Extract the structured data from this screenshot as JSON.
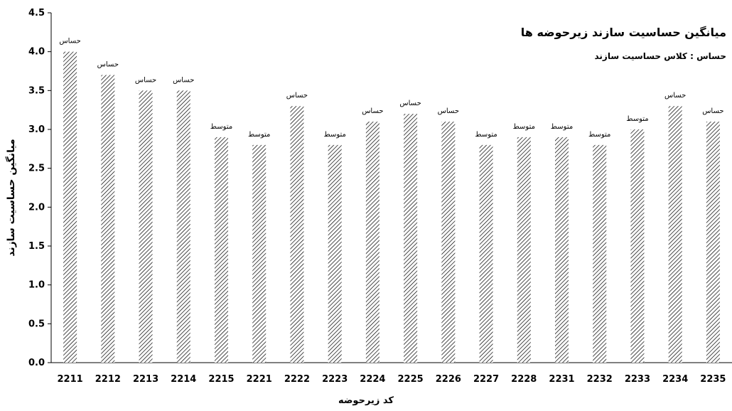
{
  "chart_data": {
    "type": "bar",
    "title": "میانگین حساسیت سازند زیرحوضه ها",
    "subtitle": "حساس : کلاس حساسیت سازند",
    "xlabel": "کد زیرحوضه",
    "ylabel": "میانگین حساسیت سازند",
    "ylim": [
      0,
      4.5
    ],
    "yticks": [
      "0.0",
      "0.5",
      "1.0",
      "1.5",
      "2.0",
      "2.5",
      "3.0",
      "3.5",
      "4.0",
      "4.5"
    ],
    "categories": [
      "2211",
      "2212",
      "2213",
      "2214",
      "2215",
      "2221",
      "2222",
      "2223",
      "2224",
      "2225",
      "2226",
      "2227",
      "2228",
      "2231",
      "2232",
      "2233",
      "2234",
      "2235"
    ],
    "values": [
      4.0,
      3.7,
      3.5,
      3.5,
      2.9,
      2.8,
      3.3,
      2.8,
      3.1,
      3.2,
      3.1,
      2.8,
      2.9,
      2.9,
      2.8,
      3.0,
      3.3,
      3.1
    ],
    "bar_labels": [
      "حساس",
      "حساس",
      "حساس",
      "حساس",
      "متوسط",
      "متوسط",
      "حساس",
      "متوسط",
      "حساس",
      "حساس",
      "حساس",
      "متوسط",
      "متوسط",
      "متوسط",
      "متوسط",
      "متوسط",
      "حساس",
      "حساس"
    ],
    "grid": false,
    "legend": "none",
    "bar_pattern": "diagonal-hatch",
    "bar_color": "#000000"
  }
}
